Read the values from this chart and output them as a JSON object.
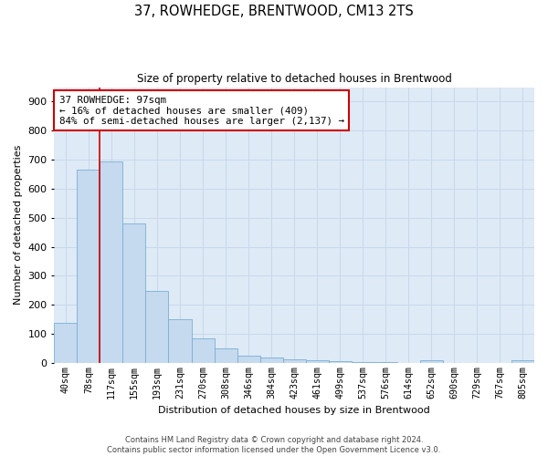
{
  "title": "37, ROWHEDGE, BRENTWOOD, CM13 2TS",
  "subtitle": "Size of property relative to detached houses in Brentwood",
  "xlabel": "Distribution of detached houses by size in Brentwood",
  "ylabel": "Number of detached properties",
  "bar_labels": [
    "40sqm",
    "78sqm",
    "117sqm",
    "155sqm",
    "193sqm",
    "231sqm",
    "270sqm",
    "308sqm",
    "346sqm",
    "384sqm",
    "423sqm",
    "461sqm",
    "499sqm",
    "537sqm",
    "576sqm",
    "614sqm",
    "652sqm",
    "690sqm",
    "729sqm",
    "767sqm",
    "805sqm"
  ],
  "bar_heights": [
    138,
    667,
    693,
    481,
    248,
    150,
    84,
    50,
    26,
    20,
    13,
    10,
    5,
    4,
    3,
    0,
    8,
    0,
    0,
    0,
    8
  ],
  "bar_color": "#c5d9ef",
  "bar_edge_color": "#7aafd4",
  "vline_color": "#cc0000",
  "vline_pos": 1.5,
  "annotation_text": "37 ROWHEDGE: 97sqm\n← 16% of detached houses are smaller (409)\n84% of semi-detached houses are larger (2,137) →",
  "annotation_box_color": "#ffffff",
  "annotation_box_edge": "#cc0000",
  "ylim": [
    0,
    950
  ],
  "yticks": [
    0,
    100,
    200,
    300,
    400,
    500,
    600,
    700,
    800,
    900
  ],
  "grid_color": "#c8d8ea",
  "background_color": "#deeaf6",
  "fig_background": "#ffffff",
  "footer": "Contains HM Land Registry data © Crown copyright and database right 2024.\nContains public sector information licensed under the Open Government Licence v3.0."
}
